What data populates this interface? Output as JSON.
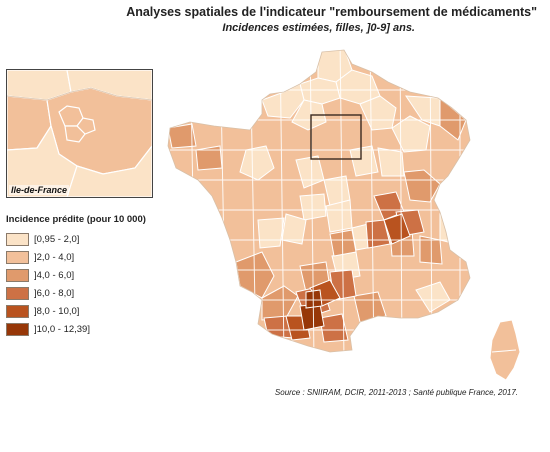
{
  "title": "Analyses spatiales de l'indicateur \"remboursement de médicaments\"",
  "subtitle": "Incidences estimées, filles, ]0-9] ans.",
  "inset": {
    "label": "Ile-de-France"
  },
  "legend": {
    "title": "Incidence prédite (pour 10 000)",
    "items": [
      {
        "label": "[0,95 - 2,0]",
        "color": "#fbe3c7"
      },
      {
        "label": "]2,0 - 4,0]",
        "color": "#f2c09a"
      },
      {
        "label": "]4,0 - 6,0]",
        "color": "#e09a6c"
      },
      {
        "label": "]6,0 - 8,0]",
        "color": "#cd7145"
      },
      {
        "label": "]8,0 - 10,0]",
        "color": "#b9531f"
      },
      {
        "label": "]10,0 - 12,39]",
        "color": "#973708"
      }
    ]
  },
  "source": "Source : SNIIRAM, DCIR, 2011-2013 ; Santé publique France, 2017.",
  "colors": {
    "border": "#ffffff",
    "frame": "#3a2a20"
  }
}
